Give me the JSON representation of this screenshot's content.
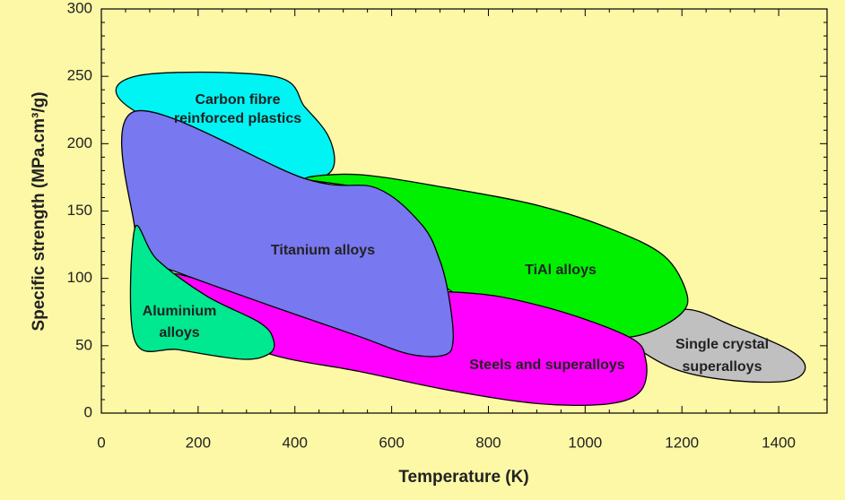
{
  "chart_data": {
    "type": "region",
    "x_label": "Temperature (K)",
    "y_label": "Specific strength (MPa.cm³/g)",
    "xlim": [
      0,
      1500
    ],
    "xticks": [
      0,
      200,
      400,
      600,
      800,
      1000,
      1200,
      1400
    ],
    "ylim": [
      0,
      300
    ],
    "yticks": [
      0,
      50,
      100,
      150,
      200,
      250,
      300
    ],
    "series": [
      {
        "name": [
          "Single crystal",
          "superalloys"
        ],
        "color": "#c0c0c0",
        "x": [
          1088,
          1199,
          1310,
          1421,
          1455,
          1421,
          1310,
          1199,
          1125
        ],
        "y": [
          57,
          77,
          64,
          47,
          34,
          24,
          24,
          31,
          44
        ]
      },
      {
        "name": [
          "Carbon fibre",
          "reinforced plastics"
        ],
        "color": "#00f4f4",
        "x": [
          70,
          356,
          421,
          467,
          482,
          467,
          421,
          70
        ],
        "y": [
          250,
          250,
          227,
          207,
          188,
          177,
          174,
          224
        ]
      },
      {
        "name": [
          "TiAl alloys"
        ],
        "color": "#00f000",
        "x": [
          421,
          532,
          718,
          904,
          1051,
          1162,
          1209,
          1199,
          1125,
          1051,
          904,
          725,
          660,
          604,
          532
        ],
        "y": [
          174,
          177,
          167,
          154,
          137,
          117,
          90,
          74,
          59,
          57,
          67,
          90,
          124,
          153,
          167
        ]
      },
      {
        "name": [
          "Steels and superalloys"
        ],
        "color": "#ff00ff",
        "x": [
          143,
          347,
          718,
          904,
          1088,
          1125,
          1116,
          1051,
          904,
          718,
          532,
          347,
          217,
          143
        ],
        "y": [
          104,
          89,
          90,
          80,
          57,
          40,
          17,
          7,
          7,
          17,
          31,
          44,
          67,
          94
        ]
      },
      {
        "name": [
          "Titanium alloys"
        ],
        "color": "#7878f0",
        "x": [
          69,
          421,
          569,
          662,
          699,
          718,
          727,
          708,
          634,
          532,
          347,
          161,
          96,
          69
        ],
        "y": [
          224,
          174,
          167,
          140,
          114,
          87,
          54,
          43,
          44,
          57,
          80,
          104,
          114,
          137
        ]
      },
      {
        "name": [
          "Aluminium",
          "alloys"
        ],
        "color": "#00e890",
        "x": [
          69,
          115,
          217,
          328,
          356,
          347,
          291,
          161,
          69
        ],
        "y": [
          137,
          114,
          87,
          67,
          54,
          44,
          40,
          47,
          54
        ]
      }
    ]
  }
}
